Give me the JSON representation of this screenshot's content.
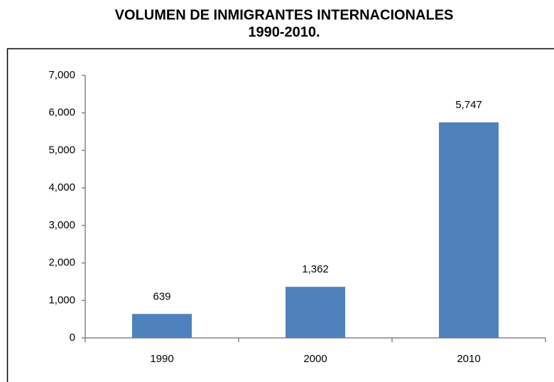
{
  "chart_data": {
    "type": "bar",
    "title": [
      "VOLUMEN DE INMIGRANTES INTERNACIONALES",
      "1990-2010."
    ],
    "categories": [
      "1990",
      "2000",
      "2010"
    ],
    "values": [
      639,
      1362,
      5747
    ],
    "value_labels": [
      "639",
      "1,362",
      "5,747"
    ],
    "color": "#4f81bd",
    "ylim": [
      0,
      7000
    ],
    "yticks": [
      0,
      {
        "value": 1000,
        "label": "1,000"
      },
      {
        "value": 2000,
        "label": "2,000"
      },
      {
        "value": 3000,
        "label": "3,000"
      },
      {
        "value": 4000,
        "label": "4,000"
      },
      {
        "value": 5000,
        "label": "5,000"
      },
      {
        "value": 6000,
        "label": "6,000"
      },
      {
        "value": 7000,
        "label": "7,000"
      }
    ],
    "grid": false
  }
}
